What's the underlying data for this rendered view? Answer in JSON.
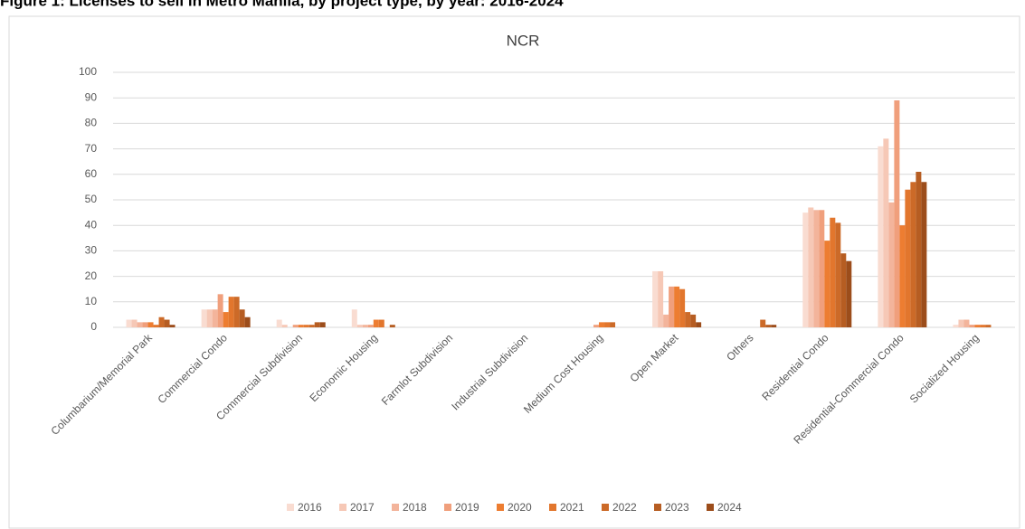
{
  "figure_title": "Figure 1: Licenses to sell in Metro Manila, by project type, by year: 2016-2024",
  "chart_data": {
    "type": "bar",
    "title": "NCR",
    "categories": [
      "Columbarium/Memorial Park",
      "Commercial Condo",
      "Commercial Subdivision",
      "Economic Housing",
      "Farmlot Subdivision",
      "Industrial Subdivision",
      "Medium Cost Housing",
      "Open Market",
      "Others",
      "Residential Condo",
      "Residential-Commercial Condo",
      "Socialized Housing"
    ],
    "series": [
      {
        "name": "2016",
        "color": "#f9dcd1",
        "values": [
          3,
          7,
          3,
          7,
          0,
          0,
          0,
          22,
          0,
          45,
          71,
          1
        ]
      },
      {
        "name": "2017",
        "color": "#f6c8b6",
        "values": [
          3,
          7,
          1,
          1,
          0,
          0,
          0,
          22,
          0,
          47,
          74,
          3
        ]
      },
      {
        "name": "2018",
        "color": "#f3b49b",
        "values": [
          2,
          7,
          0,
          1,
          0,
          0,
          0,
          5,
          0,
          46,
          49,
          3
        ]
      },
      {
        "name": "2019",
        "color": "#f09f7c",
        "values": [
          2,
          13,
          1,
          1,
          0,
          0,
          1,
          16,
          0,
          46,
          89,
          1
        ]
      },
      {
        "name": "2020",
        "color": "#ed7d31",
        "values": [
          2,
          6,
          1,
          3,
          0,
          0,
          2,
          16,
          0,
          34,
          40,
          1
        ]
      },
      {
        "name": "2021",
        "color": "#e2762d",
        "values": [
          1,
          12,
          1,
          3,
          0,
          0,
          2,
          15,
          0,
          43,
          54,
          1
        ]
      },
      {
        "name": "2022",
        "color": "#cc6a28",
        "values": [
          4,
          12,
          1,
          0,
          0,
          0,
          2,
          6,
          3,
          41,
          57,
          1
        ]
      },
      {
        "name": "2023",
        "color": "#b65d22",
        "values": [
          3,
          7,
          2,
          1,
          0,
          0,
          0,
          5,
          1,
          29,
          61,
          0
        ]
      },
      {
        "name": "2024",
        "color": "#9c4d1b",
        "values": [
          1,
          4,
          2,
          0,
          0,
          0,
          0,
          2,
          1,
          26,
          57,
          0
        ]
      }
    ],
    "ylim": [
      0,
      100
    ],
    "yticks": [
      0,
      10,
      20,
      30,
      40,
      50,
      60,
      70,
      80,
      90,
      100
    ],
    "grid": true,
    "legend": "bottom"
  }
}
